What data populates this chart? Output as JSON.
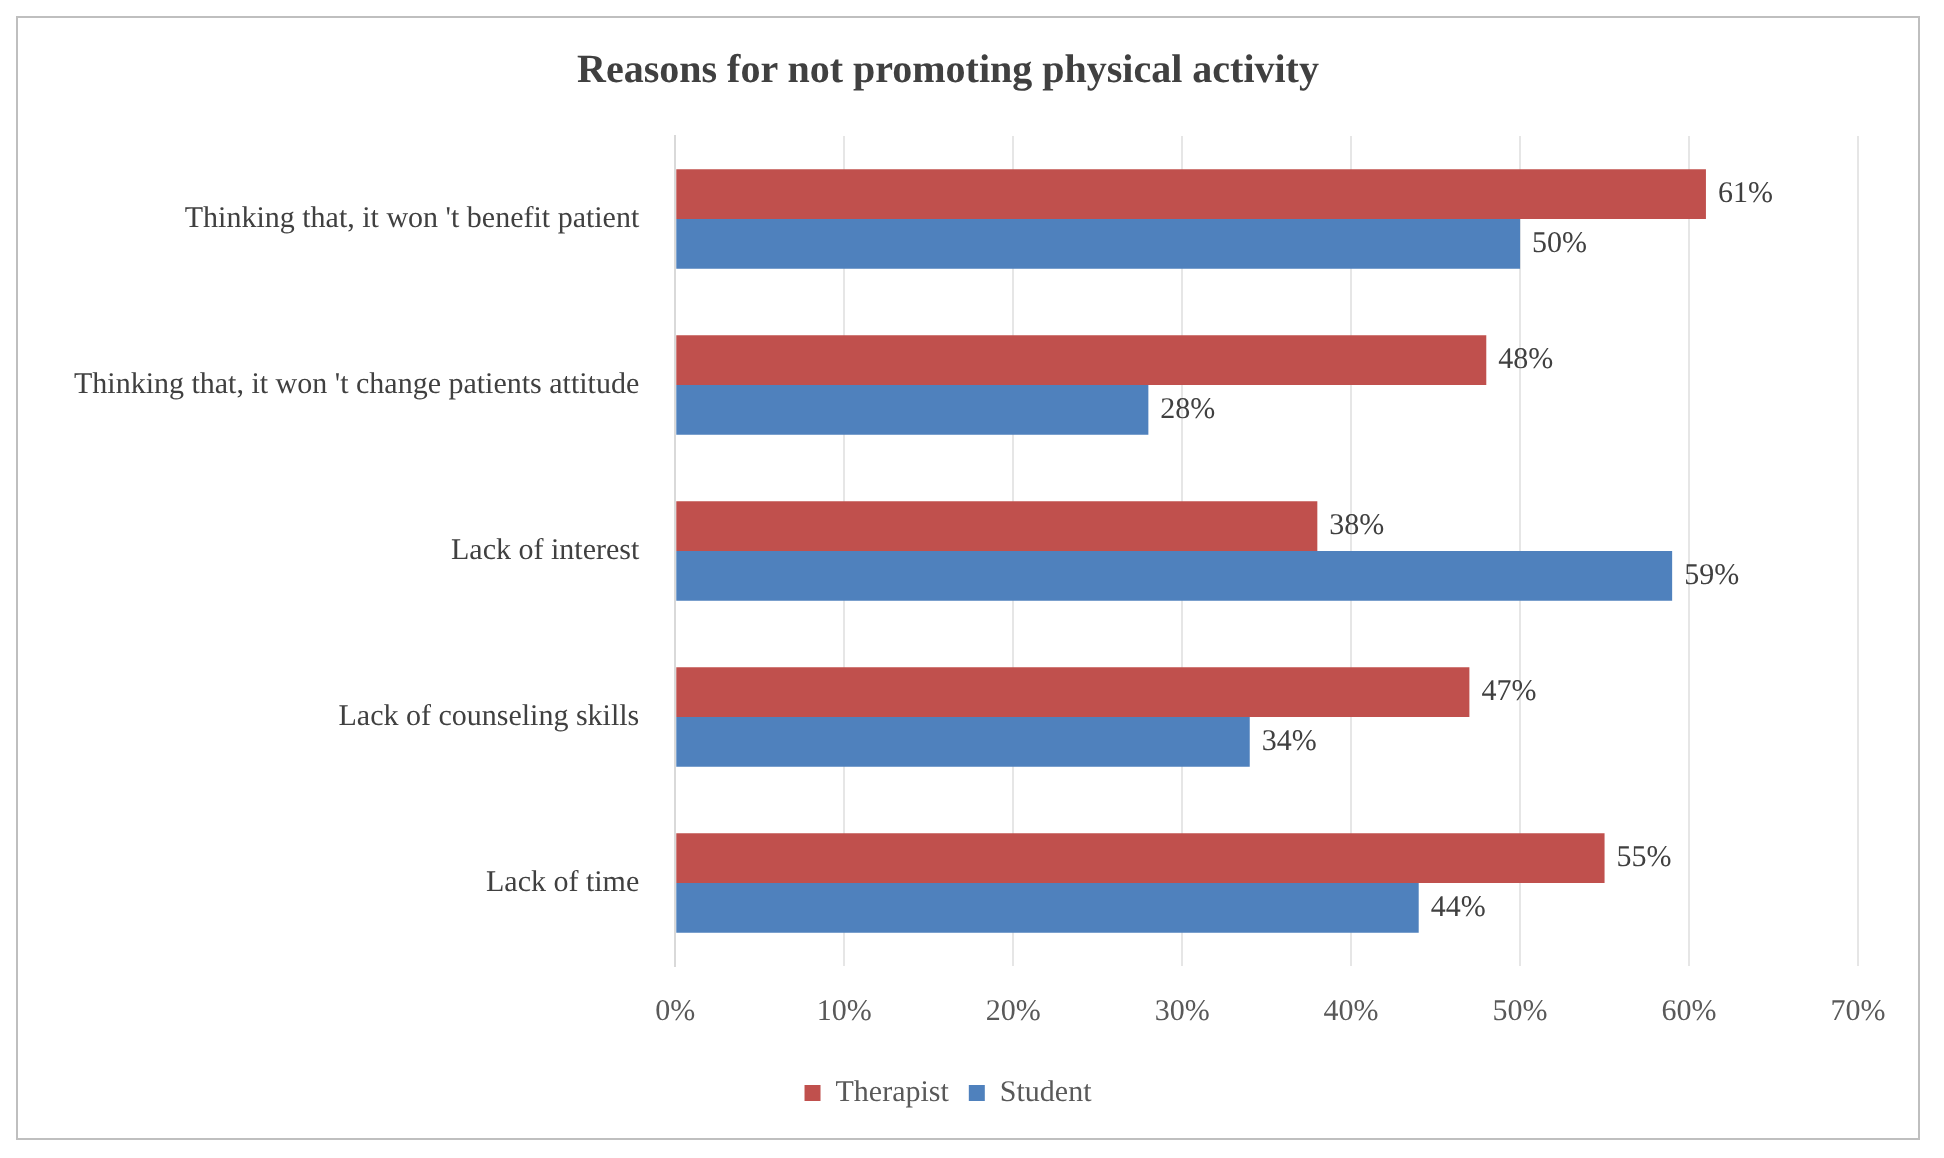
{
  "chart_data": {
    "type": "bar",
    "orientation": "horizontal",
    "title": "Reasons for not promoting physical activity",
    "categories": [
      "Thinking that, it won 't benefit patient",
      "Thinking that, it won 't change patients attitude",
      "Lack of interest",
      "Lack of counseling skills",
      "Lack of time"
    ],
    "series": [
      {
        "name": "Therapist",
        "color": "#c0504d",
        "values": [
          61,
          48,
          38,
          47,
          55
        ],
        "value_labels": [
          "61%",
          "48%",
          "38%",
          "47%",
          "55%"
        ]
      },
      {
        "name": "Student",
        "color": "#4f81bd",
        "values": [
          50,
          28,
          59,
          34,
          44
        ],
        "value_labels": [
          "50%",
          "28%",
          "59%",
          "34%",
          "44%"
        ]
      }
    ],
    "xlim": [
      0,
      70
    ],
    "xticks": [
      {
        "value": 0,
        "label": "0%"
      },
      {
        "value": 10,
        "label": "10%"
      },
      {
        "value": 20,
        "label": "20%"
      },
      {
        "value": 30,
        "label": "30%"
      },
      {
        "value": 40,
        "label": "40%"
      },
      {
        "value": 50,
        "label": "50%"
      },
      {
        "value": 60,
        "label": "60%"
      },
      {
        "value": 70,
        "label": "70%"
      }
    ],
    "grid": "x",
    "legend": "bottom"
  }
}
